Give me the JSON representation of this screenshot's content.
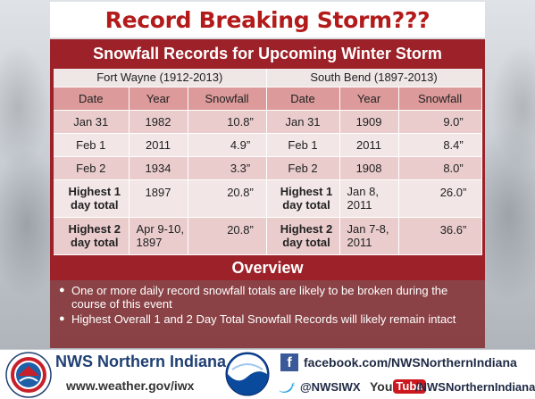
{
  "title": "Record Breaking Storm???",
  "subtitle": "Snowfall Records for Upcoming Winter Storm",
  "table": {
    "cities": [
      "Fort Wayne (1912-2013)",
      "South Bend (1897-2013)"
    ],
    "headers": [
      "Date",
      "Year",
      "Snowfall",
      "Date",
      "Year",
      "Snowfall"
    ],
    "rows": [
      [
        "Jan 31",
        "1982",
        "10.8”",
        "Jan 31",
        "1909",
        "9.0”"
      ],
      [
        "Feb 1",
        "2011",
        "4.9”",
        "Feb 1",
        "2011",
        "8.4”"
      ],
      [
        "Feb 2",
        "1934",
        "3.3”",
        "Feb 2",
        "1908",
        "8.0”"
      ],
      [
        "Highest 1 day total",
        "1897",
        "20.8”",
        "Highest 1 day total",
        "Jan 8, 2011",
        "26.0”"
      ],
      [
        "Highest 2 day total",
        "Apr 9-10, 1897",
        "20.8”",
        "Highest 2 day total",
        "Jan 7-8, 2011",
        "36.6”"
      ]
    ]
  },
  "overview": {
    "title": "Overview",
    "bullets": [
      "One or more daily record snowfall totals are likely to be broken during the course of this event",
      "Highest Overall 1 and 2 Day Total Snowfall Records will likely remain intact"
    ]
  },
  "footer": {
    "org_name": "NWS Northern Indiana",
    "website": "www.weather.gov/iwx",
    "facebook": "facebook.com/NWSNorthernIndiana",
    "twitter": "@NWSIWX",
    "youtube_you": "You",
    "youtube_tube": "Tube",
    "youtube": "/NWSNorthernIndiana",
    "nws_seal_text": "NATIONAL WEATHER SERVICE",
    "noaa_text": "NOAA"
  },
  "colors": {
    "title_red": "#b31b1b",
    "panel_red": "#9c2128",
    "header_row": "#dc9a9a",
    "row_light": "#f3e6e6",
    "row_mid": "#eacccd"
  },
  "icons": [
    "nws-seal-icon",
    "noaa-logo-icon",
    "facebook-icon",
    "twitter-bird-icon",
    "youtube-logo-icon"
  ]
}
